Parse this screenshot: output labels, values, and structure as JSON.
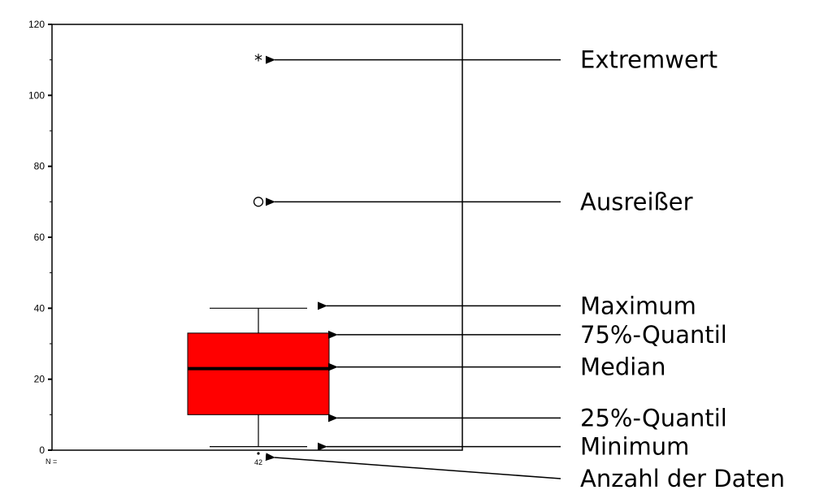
{
  "chart_data": {
    "type": "boxplot",
    "title": "",
    "xlabel": "",
    "ylabel": "",
    "ylim": [
      0,
      120
    ],
    "yticks": [
      "0",
      "20",
      "40",
      "60",
      "80",
      "100",
      "120"
    ],
    "grid": false,
    "box": {
      "minimum": 1,
      "q1": 10,
      "median": 23,
      "q3": 33,
      "maximum": 40,
      "outlier": 70,
      "extreme": 110,
      "color": "#ff0000"
    },
    "n_label": "N =",
    "n_value": "42",
    "extreme_symbol": "*",
    "annotations": [
      {
        "key": "extreme",
        "label": "Extremwert"
      },
      {
        "key": "outlier",
        "label": "Ausreißer"
      },
      {
        "key": "maximum",
        "label": "Maximum"
      },
      {
        "key": "q3",
        "label": "75%-Quantil"
      },
      {
        "key": "median",
        "label": "Median"
      },
      {
        "key": "q1",
        "label": "25%-Quantil"
      },
      {
        "key": "minimum",
        "label": "Minimum"
      },
      {
        "key": "count",
        "label": "Anzahl der Daten"
      }
    ]
  }
}
